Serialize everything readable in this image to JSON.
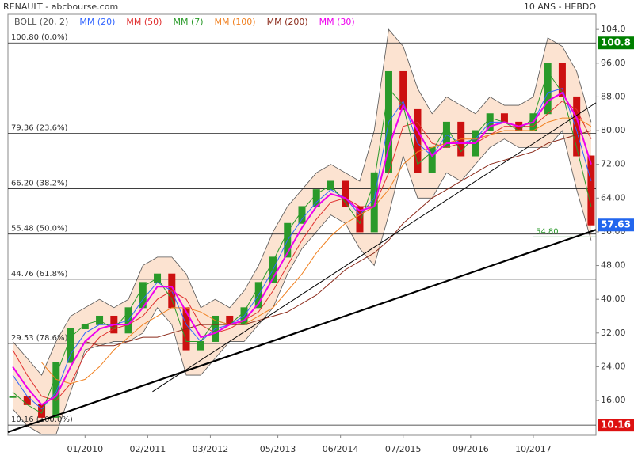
{
  "header": {
    "title": "RENAULT - abcbourse.com",
    "period": "10 ANS - HEBDO"
  },
  "chart_data": {
    "type": "candlestick",
    "x": [
      "10/2008",
      "01/2009",
      "04/2009",
      "07/2009",
      "10/2009",
      "01/2010",
      "04/2010",
      "07/2010",
      "10/2010",
      "01/2011",
      "04/2011",
      "07/2011",
      "10/2011",
      "01/2012",
      "04/2012",
      "07/2012",
      "10/2012",
      "01/2013",
      "04/2013",
      "07/2013",
      "10/2013",
      "01/2014",
      "04/2014",
      "07/2014",
      "10/2014",
      "01/2015",
      "04/2015",
      "07/2015",
      "10/2015",
      "01/2016",
      "04/2016",
      "07/2016",
      "10/2016",
      "01/2017",
      "04/2017",
      "07/2017",
      "10/2017",
      "01/2018",
      "04/2018",
      "07/2018",
      "10/2018"
    ],
    "close": [
      17,
      15,
      12,
      25,
      33,
      34,
      36,
      32,
      38,
      44,
      46,
      38,
      28,
      30,
      36,
      34,
      38,
      44,
      50,
      58,
      62,
      66,
      68,
      62,
      56,
      70,
      94,
      85,
      70,
      76,
      82,
      74,
      80,
      84,
      82,
      80,
      84,
      96,
      88,
      74,
      57.63
    ],
    "up_color": "#2a9a2a",
    "down_color": "#cc1111",
    "bollinger": {
      "name": "BOLL (20, 2)",
      "color": "#555555",
      "fill": "#fbdcc6",
      "upper": [
        30,
        26,
        22,
        30,
        36,
        38,
        40,
        38,
        40,
        48,
        50,
        50,
        46,
        38,
        40,
        38,
        42,
        48,
        56,
        62,
        66,
        70,
        72,
        70,
        68,
        80,
        104,
        100,
        90,
        84,
        88,
        86,
        84,
        88,
        86,
        86,
        88,
        102,
        100,
        94,
        82
      ],
      "lower": [
        14,
        10,
        8,
        8,
        18,
        28,
        29,
        30,
        30,
        32,
        38,
        34,
        22,
        22,
        26,
        30,
        30,
        34,
        38,
        46,
        52,
        56,
        60,
        58,
        52,
        48,
        60,
        74,
        64,
        64,
        70,
        68,
        72,
        76,
        78,
        76,
        76,
        76,
        80,
        66,
        54
      ]
    },
    "series": [
      {
        "name": "MM (20)",
        "color": "#3366ff",
        "values": [
          22,
          17,
          14,
          18,
          27,
          32,
          34,
          34,
          35,
          40,
          44,
          42,
          34,
          30,
          33,
          34,
          36,
          41,
          47,
          54,
          59,
          63,
          66,
          64,
          60,
          64,
          82,
          87,
          77,
          74,
          79,
          77,
          78,
          82,
          82,
          81,
          82,
          89,
          90,
          80,
          68
        ]
      },
      {
        "name": "MM (50)",
        "color": "#e03030",
        "values": [
          28,
          22,
          17,
          16,
          20,
          27,
          31,
          33,
          34,
          36,
          40,
          42,
          40,
          34,
          32,
          33,
          35,
          37,
          42,
          48,
          54,
          59,
          63,
          64,
          62,
          62,
          70,
          81,
          82,
          77,
          76,
          77,
          77,
          79,
          81,
          81,
          81,
          84,
          87,
          85,
          78
        ]
      },
      {
        "name": "MM (7)",
        "color": "#2a9a2a",
        "values": [
          18,
          15,
          13,
          22,
          31,
          34,
          35,
          33,
          37,
          43,
          45,
          40,
          30,
          30,
          35,
          34,
          37,
          43,
          49,
          56,
          61,
          65,
          67,
          63,
          58,
          68,
          90,
          86,
          72,
          75,
          81,
          75,
          79,
          83,
          82,
          80,
          83,
          94,
          89,
          76,
          62
        ]
      },
      {
        "name": "MM (100)",
        "color": "#f08020",
        "values": [
          null,
          null,
          25,
          21,
          20,
          21,
          24,
          28,
          31,
          34,
          36,
          38,
          38,
          37,
          35,
          34,
          34,
          36,
          38,
          42,
          46,
          51,
          55,
          58,
          60,
          62,
          66,
          72,
          75,
          76,
          77,
          78,
          78,
          79,
          80,
          80,
          80,
          82,
          83,
          83,
          81
        ]
      },
      {
        "name": "MM (200)",
        "color": "#8b2a1a",
        "values": [
          null,
          null,
          null,
          null,
          null,
          30,
          29,
          29,
          30,
          31,
          31,
          32,
          33,
          34,
          34,
          34,
          34,
          35,
          36,
          37,
          39,
          41,
          44,
          47,
          49,
          51,
          54,
          58,
          61,
          64,
          66,
          68,
          70,
          72,
          73,
          74,
          75,
          77,
          78,
          79,
          80
        ]
      },
      {
        "name": "MM (30)",
        "color": "#ee00ee",
        "values": [
          24,
          19,
          15,
          17,
          24,
          30,
          33,
          34,
          34,
          38,
          43,
          43,
          37,
          31,
          32,
          34,
          35,
          39,
          45,
          51,
          57,
          62,
          65,
          64,
          61,
          62,
          76,
          86,
          80,
          74,
          77,
          77,
          77,
          81,
          82,
          81,
          82,
          87,
          89,
          83,
          72
        ]
      }
    ],
    "xlim": [
      "09/2008",
      "11/2018"
    ],
    "xticks": [
      "01/2010",
      "02/2011",
      "03/2012",
      "05/2013",
      "06/2014",
      "07/2015",
      "09/2016",
      "10/2017"
    ],
    "ylim": [
      7.75,
      107.6
    ],
    "yticks": [
      {
        "value": 16,
        "label": "16.00"
      },
      {
        "value": 24,
        "label": "24.00"
      },
      {
        "value": 32,
        "label": "32.00"
      },
      {
        "value": 40,
        "label": "40.00"
      },
      {
        "value": 48,
        "label": "48.00"
      },
      {
        "value": 56,
        "label": "56.00"
      },
      {
        "value": 64,
        "label": "64.00"
      },
      {
        "value": 72,
        "label": "72.00"
      },
      {
        "value": 80,
        "label": "80.00"
      },
      {
        "value": 88,
        "label": "88.00"
      },
      {
        "value": 96,
        "label": "96.00"
      },
      {
        "value": 104,
        "label": "104.0"
      }
    ],
    "fibonacci": [
      {
        "value": 100.8,
        "label": "100.80 (0.0%)"
      },
      {
        "value": 79.36,
        "label": "79.36 (23.6%)"
      },
      {
        "value": 66.2,
        "label": "66.20 (38.2%)"
      },
      {
        "value": 55.48,
        "label": "55.48 (50.0%)"
      },
      {
        "value": 44.76,
        "label": "44.76 (61.8%)"
      },
      {
        "value": 29.53,
        "label": "29.53 (78.6%)"
      },
      {
        "value": 10.16,
        "label": "10.16 (100.0%)"
      }
    ],
    "price_labels": [
      {
        "value": 100.8,
        "label": "100.8",
        "color": "#008000"
      },
      {
        "value": 57.63,
        "label": "57.63",
        "color": "#2266ee"
      },
      {
        "value": 10.16,
        "label": "10.16",
        "color": "#dd1111"
      }
    ],
    "level": {
      "value": 54.8,
      "label": "54.80",
      "color": "#2a9a2a"
    },
    "trend_lines": [
      {
        "x": [
          "09/2008",
          "11/2018"
        ],
        "y": [
          8.5,
          56.5
        ],
        "width": 2.2
      },
      {
        "x": [
          "03/2011",
          "11/2018"
        ],
        "y": [
          18.1,
          86.6
        ],
        "width": 1
      }
    ]
  }
}
